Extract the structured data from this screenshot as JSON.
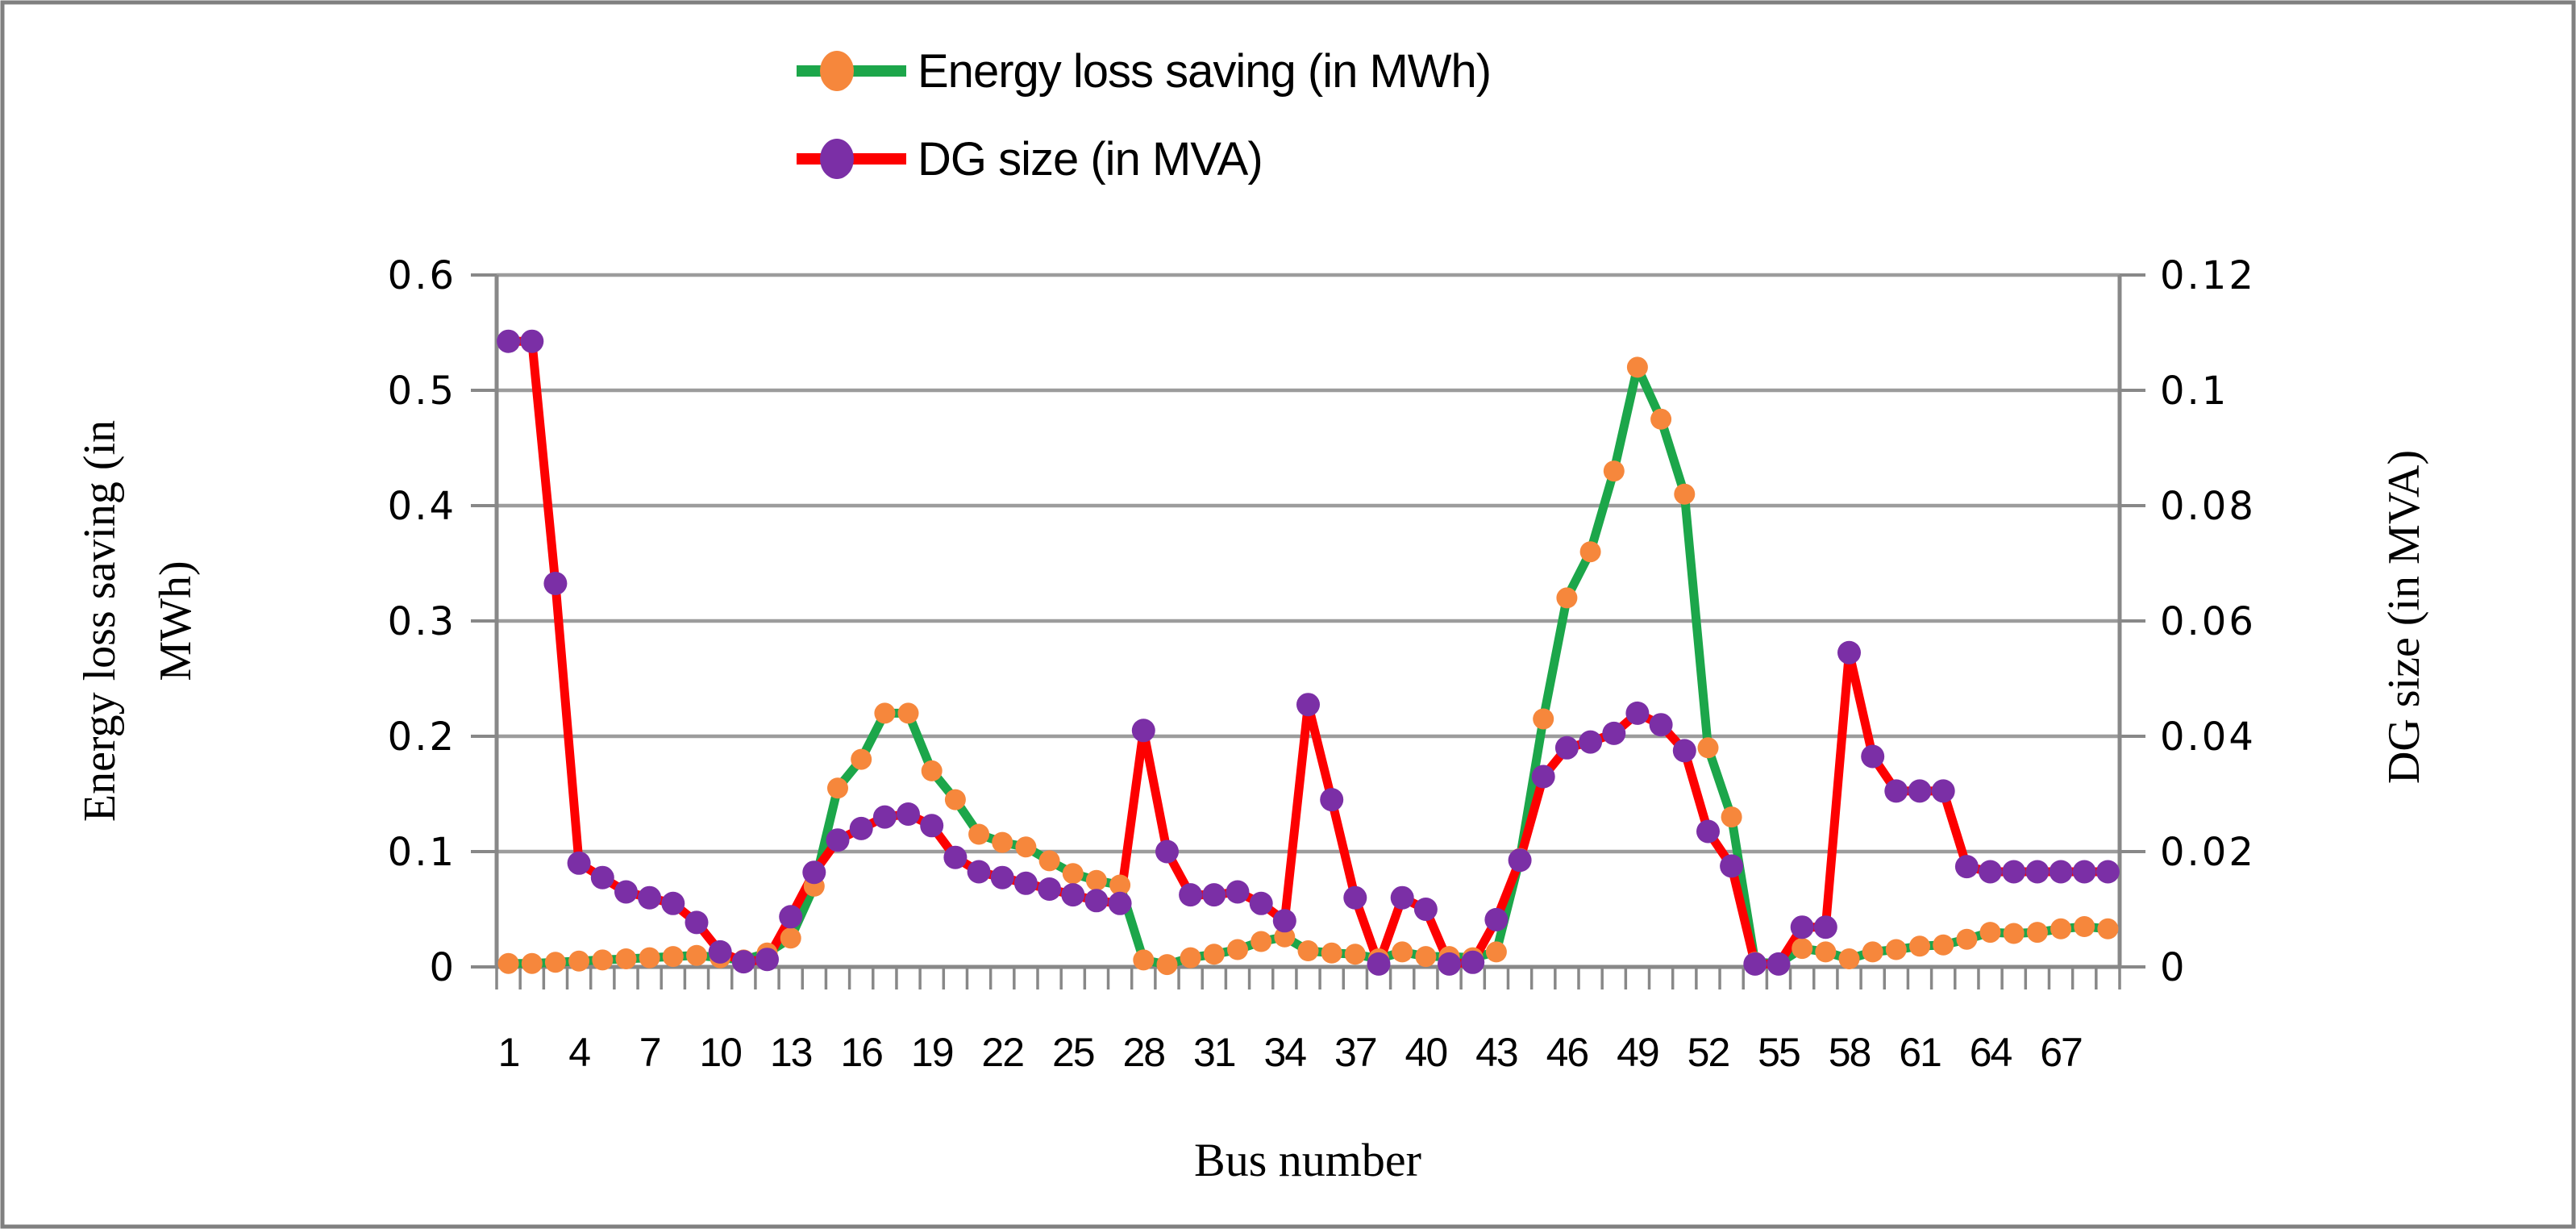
{
  "figure": {
    "background": "#ffffff",
    "border_color": "#808080",
    "gridline_color": "#9c9c9c",
    "axis_color": "#888888"
  },
  "legend": {
    "items": [
      {
        "label": "Energy loss saving (in MWh)",
        "line_color": "#1ca64a",
        "marker_color": "#f6873c"
      },
      {
        "label": "DG size (in MVA)",
        "line_color": "#fd0000",
        "marker_color": "#7b2fa6"
      }
    ]
  },
  "left_axis": {
    "title_line1": "Energy loss saving (in",
    "title_line2": "MWh)",
    "tick_labels": [
      "0.6",
      "0.5",
      "0.4",
      "0.3",
      "0.2",
      "0.1",
      "0"
    ],
    "min": 0,
    "max": 0.6
  },
  "right_axis": {
    "title": "DG size (in MVA)",
    "tick_labels": [
      "0.12",
      "0.1",
      "0.08",
      "0.06",
      "0.04",
      "0.02",
      "0"
    ],
    "min": 0,
    "max": 0.12
  },
  "x_axis": {
    "title": "Bus number",
    "tick_labels": [
      "1",
      "4",
      "7",
      "10",
      "13",
      "16",
      "19",
      "22",
      "25",
      "28",
      "31",
      "34",
      "37",
      "40",
      "43",
      "46",
      "49",
      "52",
      "55",
      "58",
      "61",
      "64",
      "67"
    ],
    "label_step": 3
  },
  "chart_data": {
    "type": "line",
    "title": "",
    "xlabel": "Bus number",
    "ylabel_left": "Energy loss saving (in MWh)",
    "ylabel_right": "DG size (in MVA)",
    "left_ylim": [
      0,
      0.6
    ],
    "right_ylim": [
      0,
      0.12
    ],
    "grid": true,
    "legend_position": "top-center",
    "x": [
      1,
      2,
      3,
      4,
      5,
      6,
      7,
      8,
      9,
      10,
      11,
      12,
      13,
      14,
      15,
      16,
      17,
      18,
      19,
      20,
      21,
      22,
      23,
      24,
      25,
      26,
      27,
      28,
      29,
      30,
      31,
      32,
      33,
      34,
      35,
      36,
      37,
      38,
      39,
      40,
      41,
      42,
      43,
      44,
      45,
      46,
      47,
      48,
      49,
      50,
      51,
      52,
      53,
      54,
      55,
      56,
      57,
      58,
      59,
      60,
      61,
      62,
      63,
      64,
      65,
      66,
      67,
      68,
      69
    ],
    "series": [
      {
        "name": "Energy loss saving (in MWh)",
        "axis": "left",
        "line_color": "#1ca64a",
        "marker_color": "#f6873c",
        "values": [
          0.003,
          0.003,
          0.004,
          0.005,
          0.006,
          0.007,
          0.008,
          0.009,
          0.01,
          0.008,
          0.006,
          0.012,
          0.025,
          0.07,
          0.155,
          0.18,
          0.22,
          0.22,
          0.17,
          0.145,
          0.115,
          0.108,
          0.104,
          0.092,
          0.081,
          0.075,
          0.071,
          0.006,
          0.002,
          0.008,
          0.011,
          0.015,
          0.022,
          0.026,
          0.014,
          0.012,
          0.011,
          0.007,
          0.013,
          0.009,
          0.009,
          0.008,
          0.013,
          0.094,
          0.215,
          0.32,
          0.36,
          0.43,
          0.52,
          0.475,
          0.41,
          0.19,
          0.13,
          0.004,
          0.003,
          0.016,
          0.013,
          0.007,
          0.013,
          0.015,
          0.018,
          0.019,
          0.024,
          0.03,
          0.029,
          0.03,
          0.033,
          0.035,
          0.033
        ]
      },
      {
        "name": "DG size (in MVA)",
        "axis": "right",
        "line_color": "#fd0000",
        "marker_color": "#7b2fa6",
        "values": [
          0.1085,
          0.1085,
          0.0665,
          0.018,
          0.0155,
          0.013,
          0.012,
          0.011,
          0.0077,
          0.0026,
          0.0009,
          0.0013,
          0.0087,
          0.0164,
          0.022,
          0.024,
          0.026,
          0.0265,
          0.0245,
          0.019,
          0.0165,
          0.0155,
          0.0145,
          0.0135,
          0.0125,
          0.0115,
          0.011,
          0.041,
          0.02,
          0.0125,
          0.0125,
          0.013,
          0.011,
          0.008,
          0.0455,
          0.029,
          0.012,
          0.0005,
          0.012,
          0.01,
          0.0005,
          0.0008,
          0.0082,
          0.0185,
          0.033,
          0.038,
          0.039,
          0.0405,
          0.044,
          0.042,
          0.0375,
          0.0235,
          0.0175,
          0.0005,
          0.0005,
          0.0069,
          0.0069,
          0.0545,
          0.0365,
          0.0305,
          0.0305,
          0.0305,
          0.0174,
          0.0165,
          0.0165,
          0.0165,
          0.0165,
          0.0165,
          0.0165
        ]
      }
    ]
  }
}
